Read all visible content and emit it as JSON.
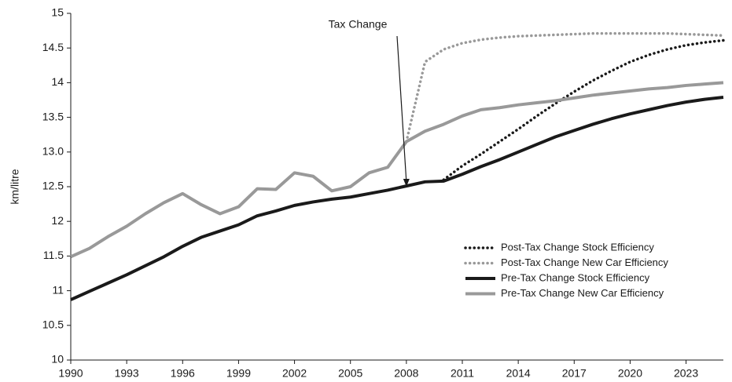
{
  "chart_data": {
    "type": "line",
    "y_label": "km/litre",
    "annotation": {
      "text": "Tax Change",
      "x": 2008,
      "y": 12.5
    },
    "legend": "lower right",
    "grid": false,
    "xlim": [
      1990,
      2025
    ],
    "xticks": [
      1990,
      1993,
      1996,
      1999,
      2002,
      2005,
      2008,
      2011,
      2014,
      2017,
      2020,
      2023
    ],
    "ylim": [
      10,
      15
    ],
    "yticks": [
      10,
      10.5,
      11,
      11.5,
      12,
      12.5,
      {
        "value": 13,
        "label": "13.0"
      },
      13.5,
      14,
      14.5,
      15
    ],
    "x": [
      1990,
      1991,
      1992,
      1993,
      1994,
      1995,
      1996,
      1997,
      1998,
      1999,
      2000,
      2001,
      2002,
      2003,
      2004,
      2005,
      2006,
      2007,
      2008,
      2009,
      2010,
      2011,
      2012,
      2013,
      2014,
      2015,
      2016,
      2017,
      2018,
      2019,
      2020,
      2021,
      2022,
      2023,
      2024,
      2025
    ],
    "series": [
      {
        "name": "Post-Tax Change Stock Efficiency",
        "color": "#1a1a1a",
        "style": "dotted",
        "values": [
          null,
          null,
          null,
          null,
          null,
          null,
          null,
          null,
          null,
          null,
          null,
          null,
          null,
          null,
          null,
          null,
          null,
          null,
          null,
          null,
          12.6,
          12.8,
          12.97,
          13.15,
          13.33,
          13.52,
          13.7,
          13.87,
          14.03,
          14.17,
          14.3,
          14.4,
          14.48,
          14.54,
          14.58,
          14.61
        ]
      },
      {
        "name": "Post-Tax Change New Car Efficiency",
        "color": "#999999",
        "style": "dotted",
        "values": [
          null,
          null,
          null,
          null,
          null,
          null,
          null,
          null,
          null,
          null,
          null,
          null,
          null,
          null,
          null,
          null,
          null,
          null,
          13.15,
          14.3,
          14.48,
          14.57,
          14.62,
          14.65,
          14.67,
          14.68,
          14.69,
          14.7,
          14.71,
          14.71,
          14.71,
          14.71,
          14.71,
          14.7,
          14.69,
          14.68
        ]
      },
      {
        "name": "Pre-Tax Change Stock Efficiency",
        "color": "#1a1a1a",
        "style": "solid",
        "values": [
          10.87,
          10.99,
          11.11,
          11.23,
          11.36,
          11.49,
          11.64,
          11.77,
          11.86,
          11.95,
          12.08,
          12.15,
          12.23,
          12.28,
          12.32,
          12.35,
          12.4,
          12.45,
          12.51,
          12.57,
          12.58,
          12.68,
          12.79,
          12.89,
          13.0,
          13.11,
          13.22,
          13.31,
          13.4,
          13.48,
          13.55,
          13.61,
          13.67,
          13.72,
          13.76,
          13.79
        ]
      },
      {
        "name": "Pre-Tax Change New Car Efficiency",
        "color": "#999999",
        "style": "solid",
        "values": [
          11.49,
          11.61,
          11.78,
          11.93,
          12.11,
          12.27,
          12.4,
          12.24,
          12.11,
          12.21,
          12.47,
          12.46,
          12.7,
          12.65,
          12.44,
          12.5,
          12.7,
          12.78,
          13.15,
          13.3,
          13.4,
          13.52,
          13.61,
          13.64,
          13.68,
          13.71,
          13.74,
          13.78,
          13.82,
          13.85,
          13.88,
          13.91,
          13.93,
          13.96,
          13.98,
          14.0
        ]
      }
    ]
  }
}
